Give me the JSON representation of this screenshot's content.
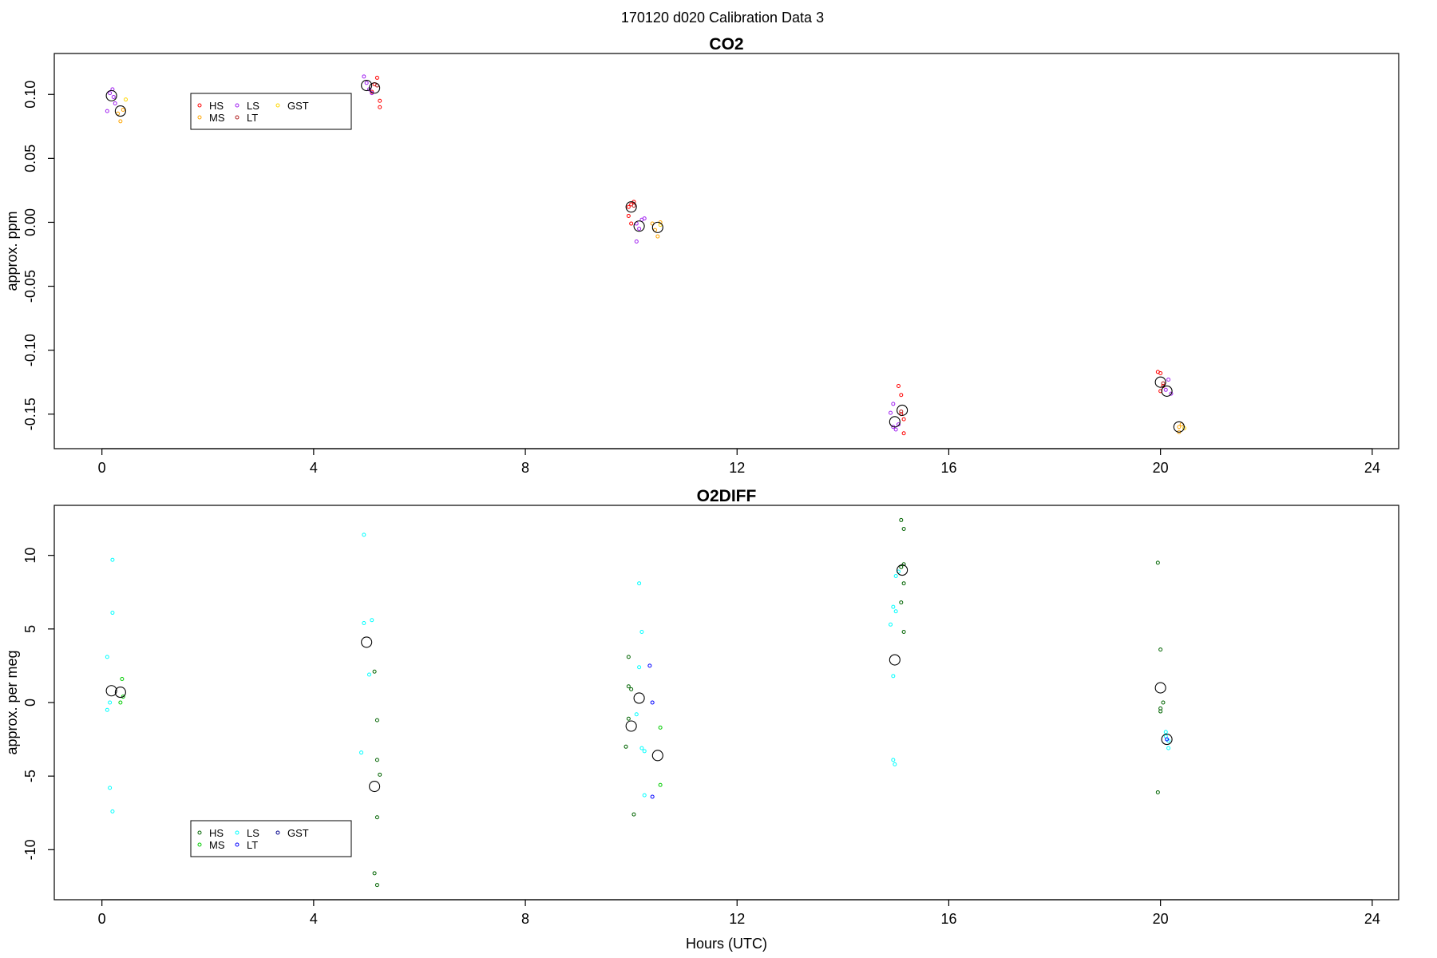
{
  "figure_title": "170120   d020   Calibration Data 3",
  "chart_data": [
    {
      "type": "scatter",
      "title": "CO2",
      "xlabel": "",
      "ylabel": "approx. ppm",
      "xlim": [
        -0.9,
        24.5
      ],
      "ylim": [
        -0.177,
        0.132
      ],
      "x_ticks": [
        0,
        4,
        8,
        12,
        16,
        20,
        24
      ],
      "x_tick_labels": [
        "0",
        "4",
        "8",
        "12",
        "16",
        "20",
        "24"
      ],
      "y_ticks": [
        0.1,
        0.05,
        0.0,
        -0.05,
        -0.1,
        -0.15
      ],
      "y_tick_labels": [
        "0.10",
        "0.05",
        "0.00",
        "-0.05",
        "-0.10",
        "-0.15"
      ],
      "grid": false,
      "legend": {
        "placement": "top-left",
        "entries": [
          {
            "label": "HS",
            "color": "#ff0000"
          },
          {
            "label": "MS",
            "color": "#ffa500"
          },
          {
            "label": "LS",
            "color": "#a020f0"
          },
          {
            "label": "LT",
            "color": "#b22222"
          },
          {
            "label": "GST",
            "color": "#ffd700"
          }
        ]
      },
      "series": [
        {
          "name": "HS",
          "color": "#ff0000",
          "points": [
            [
              5.15,
              0.108
            ],
            [
              5.2,
              0.113
            ],
            [
              5.25,
              0.095
            ],
            [
              5.25,
              0.09
            ],
            [
              5.1,
              0.102
            ],
            [
              10.0,
              0.014
            ],
            [
              10.05,
              0.016
            ],
            [
              9.95,
              0.012
            ],
            [
              9.95,
              0.005
            ],
            [
              10.0,
              -0.001
            ],
            [
              15.05,
              -0.128
            ],
            [
              15.1,
              -0.135
            ],
            [
              15.1,
              -0.15
            ],
            [
              15.15,
              -0.154
            ],
            [
              15.15,
              -0.165
            ],
            [
              19.95,
              -0.117
            ],
            [
              20.0,
              -0.118
            ],
            [
              20.05,
              -0.128
            ],
            [
              20.0,
              -0.132
            ]
          ]
        },
        {
          "name": "MS",
          "color": "#ffa500",
          "points": [
            [
              0.3,
              0.085
            ],
            [
              0.35,
              0.079
            ],
            [
              0.4,
              0.088
            ],
            [
              10.4,
              -0.001
            ],
            [
              10.45,
              -0.006
            ],
            [
              10.5,
              -0.011
            ],
            [
              10.55,
              0.0
            ],
            [
              20.35,
              -0.16
            ],
            [
              20.4,
              -0.158
            ],
            [
              20.35,
              -0.164
            ]
          ]
        },
        {
          "name": "LS",
          "color": "#a020f0",
          "points": [
            [
              0.1,
              0.087
            ],
            [
              0.15,
              0.101
            ],
            [
              0.2,
              0.104
            ],
            [
              0.25,
              0.093
            ],
            [
              0.22,
              0.098
            ],
            [
              4.95,
              0.114
            ],
            [
              5.0,
              0.109
            ],
            [
              5.05,
              0.104
            ],
            [
              5.1,
              0.101
            ],
            [
              10.1,
              -0.001
            ],
            [
              10.15,
              -0.005
            ],
            [
              10.1,
              -0.015
            ],
            [
              10.2,
              0.002
            ],
            [
              10.25,
              0.003
            ],
            [
              14.95,
              -0.142
            ],
            [
              14.9,
              -0.149
            ],
            [
              14.95,
              -0.16
            ],
            [
              15.0,
              -0.162
            ],
            [
              15.05,
              -0.158
            ],
            [
              20.1,
              -0.131
            ],
            [
              20.15,
              -0.123
            ],
            [
              20.2,
              -0.134
            ]
          ]
        },
        {
          "name": "LT",
          "color": "#b22222",
          "points": [
            [
              5.2,
              0.107
            ],
            [
              10.05,
              0.013
            ],
            [
              15.1,
              -0.148
            ],
            [
              20.05,
              -0.126
            ]
          ]
        },
        {
          "name": "GST",
          "color": "#ffd700",
          "points": [
            [
              0.45,
              0.096
            ],
            [
              10.55,
              -0.002
            ],
            [
              20.45,
              -0.161
            ]
          ]
        },
        {
          "name": "",
          "color": "#000000",
          "marker": "large-circle",
          "points": [
            [
              0.18,
              0.099
            ],
            [
              0.35,
              0.087
            ],
            [
              5.0,
              0.107
            ],
            [
              5.15,
              0.105
            ],
            [
              10.0,
              0.012
            ],
            [
              10.15,
              -0.003
            ],
            [
              10.5,
              -0.004
            ],
            [
              14.98,
              -0.156
            ],
            [
              15.12,
              -0.147
            ],
            [
              20.0,
              -0.125
            ],
            [
              20.12,
              -0.132
            ],
            [
              20.35,
              -0.16
            ]
          ]
        }
      ]
    },
    {
      "type": "scatter",
      "title": "O2DIFF",
      "xlabel": "Hours (UTC)",
      "ylabel": "approx. per meg",
      "xlim": [
        -0.9,
        24.5
      ],
      "ylim": [
        -13.4,
        13.4
      ],
      "x_ticks": [
        0,
        4,
        8,
        12,
        16,
        20,
        24
      ],
      "x_tick_labels": [
        "0",
        "4",
        "8",
        "12",
        "16",
        "20",
        "24"
      ],
      "y_ticks": [
        10,
        5,
        0,
        -5,
        -10
      ],
      "y_tick_labels": [
        "10",
        "5",
        "0",
        "-5",
        "-10"
      ],
      "grid": false,
      "legend": {
        "placement": "bottom-left",
        "entries": [
          {
            "label": "HS",
            "color": "#006400"
          },
          {
            "label": "MS",
            "color": "#00cc00"
          },
          {
            "label": "LS",
            "color": "#00ffff"
          },
          {
            "label": "LT",
            "color": "#0000ff"
          },
          {
            "label": "GST",
            "color": "#00008b"
          }
        ]
      },
      "series": [
        {
          "name": "HS",
          "color": "#006400",
          "points": [
            [
              5.15,
              2.1
            ],
            [
              5.2,
              -1.2
            ],
            [
              5.2,
              -3.9
            ],
            [
              5.25,
              -4.9
            ],
            [
              5.2,
              -7.8
            ],
            [
              5.15,
              -11.6
            ],
            [
              5.2,
              -12.4
            ],
            [
              9.95,
              3.1
            ],
            [
              9.95,
              1.1
            ],
            [
              10.0,
              0.9
            ],
            [
              9.95,
              -1.1
            ],
            [
              9.9,
              -3.0
            ],
            [
              10.05,
              -7.6
            ],
            [
              15.1,
              12.4
            ],
            [
              15.15,
              11.8
            ],
            [
              15.15,
              9.4
            ],
            [
              15.1,
              9.2
            ],
            [
              15.15,
              8.1
            ],
            [
              15.1,
              6.8
            ],
            [
              15.15,
              4.8
            ],
            [
              19.95,
              9.5
            ],
            [
              20.0,
              3.6
            ],
            [
              20.05,
              0.0
            ],
            [
              20.0,
              -0.4
            ],
            [
              20.0,
              -0.6
            ],
            [
              19.95,
              -6.1
            ]
          ]
        },
        {
          "name": "MS",
          "color": "#00cc00",
          "points": [
            [
              0.38,
              1.6
            ],
            [
              0.35,
              0.0
            ],
            [
              0.4,
              0.4
            ],
            [
              10.55,
              -1.7
            ],
            [
              10.55,
              -5.6
            ]
          ]
        },
        {
          "name": "LS",
          "color": "#00ffff",
          "points": [
            [
              0.2,
              9.7
            ],
            [
              0.2,
              6.1
            ],
            [
              0.1,
              3.1
            ],
            [
              0.15,
              0.0
            ],
            [
              0.1,
              -0.5
            ],
            [
              0.15,
              -5.8
            ],
            [
              0.2,
              -7.4
            ],
            [
              4.95,
              11.4
            ],
            [
              5.1,
              5.6
            ],
            [
              4.95,
              5.4
            ],
            [
              5.05,
              1.9
            ],
            [
              4.9,
              -3.4
            ],
            [
              10.15,
              8.1
            ],
            [
              10.2,
              4.8
            ],
            [
              10.15,
              2.4
            ],
            [
              10.1,
              -0.8
            ],
            [
              10.2,
              -3.1
            ],
            [
              10.25,
              -3.3
            ],
            [
              10.25,
              -6.3
            ],
            [
              15.0,
              8.6
            ],
            [
              15.05,
              8.9
            ],
            [
              14.95,
              6.5
            ],
            [
              15.0,
              6.2
            ],
            [
              14.9,
              5.3
            ],
            [
              14.95,
              1.8
            ],
            [
              14.95,
              -3.9
            ],
            [
              14.98,
              -4.2
            ],
            [
              20.1,
              -2.0
            ],
            [
              20.15,
              -2.6
            ],
            [
              20.15,
              -3.1
            ],
            [
              20.1,
              -2.3
            ]
          ]
        },
        {
          "name": "LT",
          "color": "#0000ff",
          "points": [
            [
              10.35,
              2.5
            ],
            [
              10.4,
              0.0
            ],
            [
              10.4,
              -6.4
            ],
            [
              20.12,
              -2.5
            ]
          ]
        },
        {
          "name": "",
          "color": "#000000",
          "marker": "large-circle",
          "points": [
            [
              0.18,
              0.8
            ],
            [
              0.35,
              0.7
            ],
            [
              5.0,
              4.1
            ],
            [
              5.15,
              -5.7
            ],
            [
              10.0,
              -1.6
            ],
            [
              10.15,
              0.3
            ],
            [
              10.5,
              -3.6
            ],
            [
              14.98,
              2.9
            ],
            [
              15.12,
              9.0
            ],
            [
              20.0,
              1.0
            ],
            [
              20.12,
              -2.5
            ]
          ]
        }
      ]
    }
  ]
}
